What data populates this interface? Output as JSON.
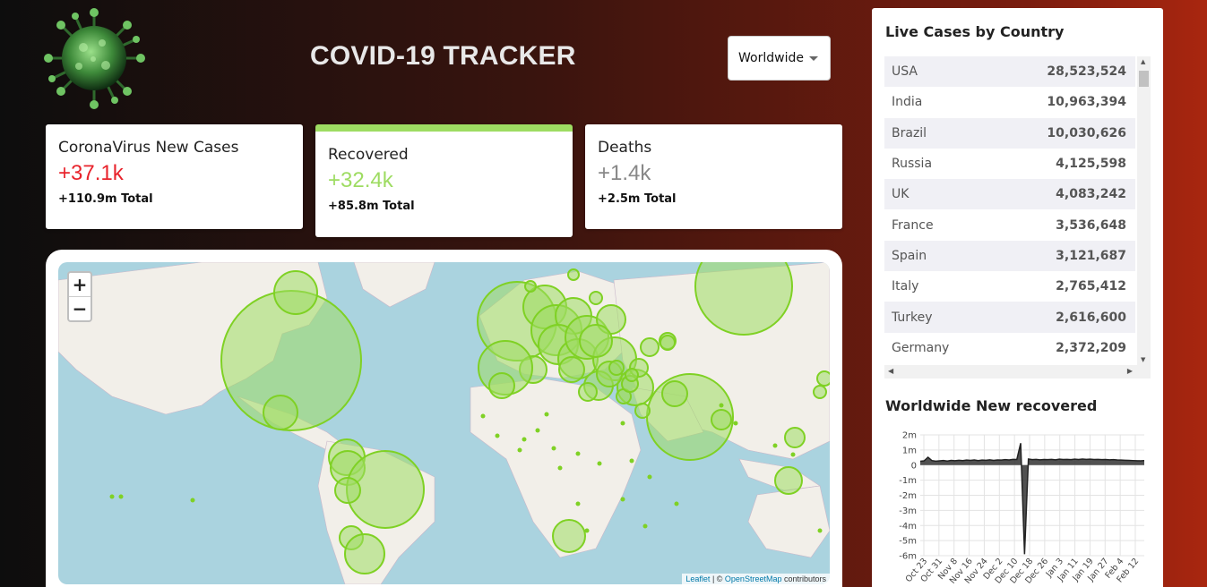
{
  "header": {
    "title": "COVID-19 TRACKER",
    "country_select": "Worldwide"
  },
  "cards": [
    {
      "title": "CoronaVirus New Cases",
      "value": "+37.1k",
      "total": "+110.9m  Total",
      "color": "#e8232c"
    },
    {
      "title": "Recovered",
      "value": "+32.4k",
      "total": "+85.8m  Total",
      "color": "#9edc62"
    },
    {
      "title": "Deaths",
      "value": "+1.4k",
      "total": "+2.5m  Total",
      "color": "#888888"
    }
  ],
  "map": {
    "zoom_in": "+",
    "zoom_out": "−",
    "attribution_link1": "Leaflet",
    "attribution_sep": " | © ",
    "attribution_link2": "OpenStreetMap",
    "attribution_tail": " contributors"
  },
  "live_cases": {
    "title": "Live Cases by Country",
    "rows": [
      {
        "country": "USA",
        "cases": "28,523,524"
      },
      {
        "country": "India",
        "cases": "10,963,394"
      },
      {
        "country": "Brazil",
        "cases": "10,030,626"
      },
      {
        "country": "Russia",
        "cases": "4,125,598"
      },
      {
        "country": "UK",
        "cases": "4,083,242"
      },
      {
        "country": "France",
        "cases": "3,536,648"
      },
      {
        "country": "Spain",
        "cases": "3,121,687"
      },
      {
        "country": "Italy",
        "cases": "2,765,412"
      },
      {
        "country": "Turkey",
        "cases": "2,616,600"
      },
      {
        "country": "Germany",
        "cases": "2,372,209"
      }
    ]
  },
  "chart_data": {
    "type": "area",
    "title": "Worldwide New recovered",
    "ylim": [
      -6000000,
      2000000
    ],
    "y_ticks": [
      "2m",
      "1m",
      "0",
      "-1m",
      "-2m",
      "-3m",
      "-4m",
      "-5m",
      "-6m"
    ],
    "x_ticks": [
      "Oct 23",
      "Oct 31",
      "Nov 8",
      "Nov 16",
      "Nov 24",
      "Dec 2",
      "Dec 10",
      "Dec 18",
      "Dec 26",
      "Jan 3",
      "Jan 11",
      "Jan 19",
      "Jan 27",
      "Feb 4",
      "Feb 12"
    ],
    "x": [
      "Oct 23",
      "Oct 25",
      "Oct 27",
      "Oct 29",
      "Oct 31",
      "Nov 2",
      "Nov 4",
      "Nov 6",
      "Nov 8",
      "Nov 10",
      "Nov 12",
      "Nov 14",
      "Nov 16",
      "Nov 18",
      "Nov 20",
      "Nov 22",
      "Nov 24",
      "Nov 26",
      "Nov 28",
      "Nov 30",
      "Dec 2",
      "Dec 4",
      "Dec 6",
      "Dec 8",
      "Dec 10",
      "Dec 12",
      "Dec 14",
      "Dec 16",
      "Dec 18",
      "Dec 20",
      "Dec 22",
      "Dec 24",
      "Dec 26",
      "Dec 28",
      "Dec 30",
      "Jan 1",
      "Jan 3",
      "Jan 5",
      "Jan 7",
      "Jan 9",
      "Jan 11",
      "Jan 13",
      "Jan 15",
      "Jan 17",
      "Jan 19",
      "Jan 21",
      "Jan 23",
      "Jan 25",
      "Jan 27",
      "Jan 29",
      "Jan 31",
      "Feb 2",
      "Feb 4",
      "Feb 6",
      "Feb 8",
      "Feb 10",
      "Feb 12",
      "Feb 14",
      "Feb 16"
    ],
    "series": [
      {
        "values": [
          250000,
          280000,
          520000,
          300000,
          260000,
          280000,
          300000,
          270000,
          310000,
          290000,
          320000,
          300000,
          330000,
          310000,
          340000,
          300000,
          330000,
          320000,
          350000,
          310000,
          340000,
          330000,
          360000,
          340000,
          380000,
          370000,
          1450000,
          -5900000,
          400000,
          360000,
          380000,
          350000,
          370000,
          360000,
          380000,
          350000,
          390000,
          370000,
          380000,
          360000,
          390000,
          370000,
          400000,
          380000,
          390000,
          370000,
          380000,
          360000,
          370000,
          350000,
          360000,
          340000,
          330000,
          320000,
          310000,
          300000,
          290000,
          280000,
          300000
        ]
      }
    ],
    "color": "#333333"
  },
  "colors": {
    "accent_green": "#9edc62",
    "cases_red": "#e8232c",
    "bubble_stroke": "#7fd124"
  }
}
